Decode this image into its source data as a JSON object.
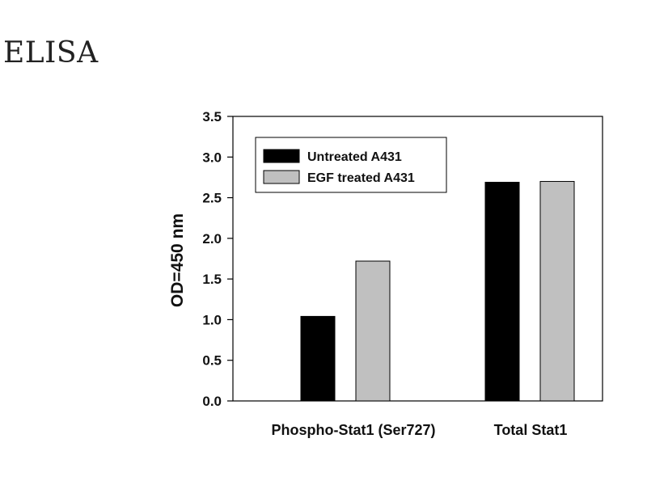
{
  "page": {
    "title": "ELISA"
  },
  "chart_data": {
    "type": "bar",
    "categories": [
      "Phospho-Stat1 (Ser727)",
      "Total Stat1"
    ],
    "series": [
      {
        "name": "Untreated A431",
        "values": [
          1.04,
          2.69
        ],
        "color": "#000000"
      },
      {
        "name": "EGF treated A431",
        "values": [
          1.72,
          2.7
        ],
        "color": "#c0c0c0"
      }
    ],
    "xlabel": "",
    "ylabel": "OD=450 nm",
    "ylim": [
      0,
      3.5
    ],
    "yticks": [
      0.0,
      0.5,
      1.0,
      1.5,
      2.0,
      2.5,
      3.0,
      3.5
    ],
    "ytick_labels": [
      "0.0",
      "0.5",
      "1.0",
      "1.5",
      "2.0",
      "2.5",
      "3.0",
      "3.5"
    ],
    "grid": false,
    "legend_position": "top-left"
  }
}
